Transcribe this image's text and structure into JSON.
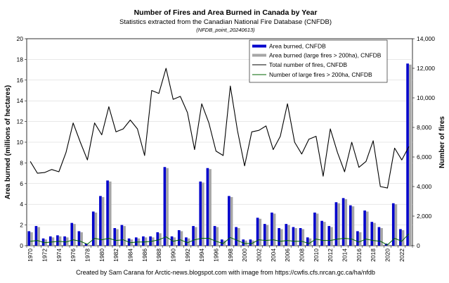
{
  "chart_data": {
    "type": "bar+line",
    "title": "Number of Fires and Area Burned in Canada by Year",
    "subtitle": "Statistics extracted from the Canadian National Fire Database (CNFDB)",
    "subtitle2": "(NFDB_point_20240613)",
    "caption": "Created by Sam Carana for Arctic-news.blogspot.com with image from https://cwfis.cfs.nrcan.gc.ca/ha/nfdb",
    "xlabel": "",
    "ylabel_left": "Area burned (millions of hectares)",
    "ylabel_right": "Number of fires",
    "ylim_left": [
      0,
      20
    ],
    "ylim_right": [
      0,
      14000
    ],
    "yticks_left": [
      "0",
      "2",
      "4",
      "6",
      "8",
      "10",
      "12",
      "14",
      "16",
      "18",
      "20"
    ],
    "yticks_right": [
      "0",
      "2,000",
      "4,000",
      "6,000",
      "8,000",
      "10,000",
      "12,000",
      "14,000"
    ],
    "x": [
      1970,
      1971,
      1972,
      1973,
      1974,
      1975,
      1976,
      1977,
      1978,
      1979,
      1980,
      1981,
      1982,
      1983,
      1984,
      1985,
      1986,
      1987,
      1988,
      1989,
      1990,
      1991,
      1992,
      1993,
      1994,
      1995,
      1996,
      1997,
      1998,
      1999,
      2000,
      2001,
      2002,
      2003,
      2004,
      2005,
      2006,
      2007,
      2008,
      2009,
      2010,
      2011,
      2012,
      2013,
      2014,
      2015,
      2016,
      2017,
      2018,
      2019,
      2020,
      2021,
      2022,
      2023
    ],
    "x_tick_labels": [
      "1970",
      "1972",
      "1974",
      "1976",
      "1978",
      "1980",
      "1982",
      "1984",
      "1986",
      "1988",
      "1990",
      "1992",
      "1994",
      "1996",
      "1998",
      "2000",
      "2002",
      "2004",
      "2006",
      "2008",
      "2010",
      "2012",
      "2014",
      "2016",
      "2018",
      "2020",
      "2022"
    ],
    "legend": [
      {
        "label": "Area burned, CNFDB",
        "kind": "bar",
        "color": "#0000cc"
      },
      {
        "label": "Area burned (large fires > 200ha), CNFDB",
        "kind": "bar",
        "color": "#a6a6a6"
      },
      {
        "label": "Total number of fires, CNFDB",
        "kind": "line",
        "color": "#000000"
      },
      {
        "label": "Number of large fires > 200ha, CNFDB",
        "kind": "line",
        "color": "#006400"
      }
    ],
    "series": [
      {
        "name": "Area burned, CNFDB",
        "axis": "left",
        "values": [
          1.4,
          1.9,
          0.7,
          0.9,
          1.0,
          0.9,
          2.2,
          1.4,
          0.2,
          3.3,
          4.8,
          6.3,
          1.7,
          2.0,
          0.7,
          0.8,
          0.9,
          0.9,
          1.3,
          7.6,
          0.9,
          1.5,
          0.8,
          1.9,
          6.2,
          7.5,
          1.9,
          0.6,
          4.8,
          1.8,
          0.6,
          0.6,
          2.7,
          2.1,
          3.2,
          1.7,
          2.1,
          1.8,
          1.7,
          0.8,
          3.2,
          2.4,
          1.9,
          4.2,
          4.6,
          3.9,
          1.4,
          3.4,
          2.3,
          1.8,
          0.2,
          4.1,
          1.6,
          17.6
        ]
      },
      {
        "name": "Area burned (large fires > 200ha), CNFDB",
        "axis": "left",
        "values": [
          1.3,
          1.8,
          0.6,
          0.8,
          0.9,
          0.8,
          2.1,
          1.3,
          0.1,
          3.2,
          4.7,
          6.2,
          1.6,
          1.9,
          0.6,
          0.7,
          0.8,
          0.8,
          1.2,
          7.5,
          0.8,
          1.4,
          0.7,
          1.8,
          6.1,
          7.4,
          1.8,
          0.5,
          4.7,
          1.7,
          0.5,
          0.5,
          2.6,
          2.0,
          3.1,
          1.6,
          2.0,
          1.7,
          1.6,
          0.7,
          3.1,
          2.3,
          1.8,
          4.1,
          4.5,
          3.8,
          1.3,
          3.3,
          2.2,
          1.7,
          0.1,
          4.0,
          1.5,
          17.5
        ]
      },
      {
        "name": "Total number of fires, CNFDB",
        "axis": "right",
        "values": [
          5700,
          4900,
          4950,
          5150,
          5000,
          6300,
          8300,
          7000,
          5800,
          8300,
          7500,
          9400,
          7700,
          7900,
          8500,
          7900,
          6100,
          10500,
          10300,
          12000,
          9900,
          10100,
          9000,
          6500,
          9600,
          8300,
          6400,
          6100,
          10800,
          7800,
          5400,
          7700,
          7800,
          8100,
          6500,
          7400,
          9600,
          7000,
          6200,
          7200,
          7400,
          4700,
          7900,
          6300,
          5000,
          7000,
          5300,
          5700,
          7100,
          4000,
          3900,
          6600,
          5800,
          6700
        ]
      },
      {
        "name": "Number of large fires > 200ha, CNFDB",
        "axis": "right",
        "values": [
          300,
          350,
          200,
          250,
          300,
          250,
          400,
          300,
          100,
          500,
          400,
          500,
          350,
          400,
          200,
          250,
          250,
          300,
          400,
          600,
          300,
          400,
          200,
          400,
          500,
          500,
          300,
          150,
          550,
          350,
          150,
          150,
          400,
          350,
          400,
          300,
          350,
          300,
          300,
          150,
          450,
          350,
          350,
          450,
          500,
          450,
          250,
          450,
          350,
          300,
          50,
          500,
          300,
          800
        ]
      }
    ]
  }
}
